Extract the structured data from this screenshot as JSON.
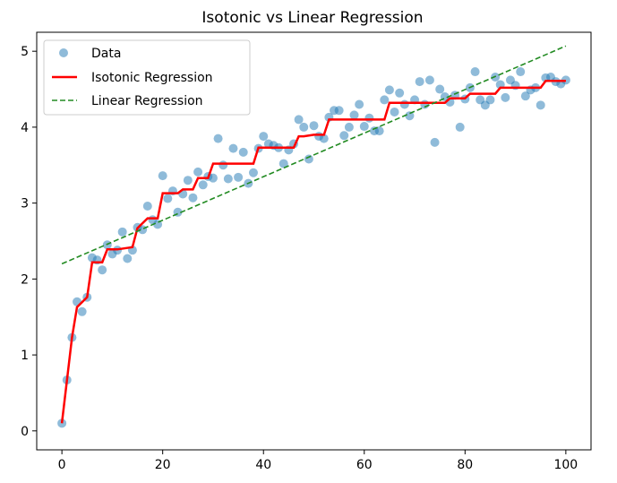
{
  "chart_data": {
    "type": "scatter",
    "title": "Isotonic vs Linear Regression",
    "xlabel": "",
    "ylabel": "",
    "xlim": [
      -5,
      105
    ],
    "ylim": [
      -0.25,
      5.25
    ],
    "x_ticks": [
      0,
      20,
      40,
      60,
      80,
      100
    ],
    "y_ticks": [
      0,
      1,
      2,
      3,
      4,
      5
    ],
    "grid": false,
    "legend": {
      "position": "top-left"
    },
    "series": [
      {
        "name": "Data",
        "kind": "scatter",
        "color": "#1f77b4",
        "x": [
          0,
          1,
          2,
          3,
          4,
          5,
          6,
          7,
          8,
          9,
          10,
          11,
          12,
          13,
          14,
          15,
          16,
          17,
          18,
          19,
          20,
          21,
          22,
          23,
          24,
          25,
          26,
          27,
          28,
          29,
          30,
          31,
          32,
          33,
          34,
          35,
          36,
          37,
          38,
          39,
          40,
          41,
          42,
          43,
          44,
          45,
          46,
          47,
          48,
          49,
          50,
          51,
          52,
          53,
          54,
          55,
          56,
          57,
          58,
          59,
          60,
          61,
          62,
          63,
          64,
          65,
          66,
          67,
          68,
          69,
          70,
          71,
          72,
          73,
          74,
          75,
          76,
          77,
          78,
          79,
          80,
          81,
          82,
          83,
          84,
          85,
          86,
          87,
          88,
          89,
          90,
          91,
          92,
          93,
          94,
          95,
          96,
          97,
          98,
          99,
          100
        ],
        "y": [
          0.1,
          0.67,
          1.23,
          1.7,
          1.57,
          1.76,
          2.28,
          2.25,
          2.12,
          2.45,
          2.33,
          2.38,
          2.62,
          2.27,
          2.38,
          2.68,
          2.65,
          2.96,
          2.78,
          2.72,
          3.36,
          3.06,
          3.16,
          2.88,
          3.12,
          3.3,
          3.07,
          3.41,
          3.24,
          3.35,
          3.33,
          3.85,
          3.5,
          3.32,
          3.72,
          3.34,
          3.67,
          3.26,
          3.4,
          3.72,
          3.88,
          3.78,
          3.76,
          3.73,
          3.52,
          3.7,
          3.78,
          4.1,
          4.0,
          3.58,
          4.02,
          3.88,
          3.85,
          4.13,
          4.22,
          4.22,
          3.89,
          4.0,
          4.16,
          4.3,
          4.01,
          4.12,
          3.95,
          3.95,
          4.36,
          4.49,
          4.2,
          4.45,
          4.3,
          4.15,
          4.36,
          4.6,
          4.3,
          4.62,
          3.8,
          4.5,
          4.4,
          4.33,
          4.42,
          4.0,
          4.37,
          4.52,
          4.73,
          4.36,
          4.29,
          4.36,
          4.66,
          4.56,
          4.39,
          4.62,
          4.55,
          4.73,
          4.41,
          4.49,
          4.52,
          4.29,
          4.65,
          4.66,
          4.6,
          4.57,
          4.62
        ]
      },
      {
        "name": "Isotonic Regression",
        "kind": "step-line",
        "color": "#ff0000",
        "x": [
          0,
          1,
          2,
          3,
          5,
          6,
          8,
          9,
          11,
          14,
          15,
          17,
          19,
          20,
          23,
          24,
          26,
          27,
          29,
          30,
          31,
          38,
          39,
          40,
          46,
          47,
          48,
          50,
          52,
          53,
          54,
          63,
          64,
          65,
          70,
          71,
          72,
          76,
          77,
          80,
          81,
          86,
          87,
          95,
          96,
          100
        ],
        "y": [
          0.1,
          0.67,
          1.23,
          1.63,
          1.76,
          2.22,
          2.22,
          2.39,
          2.39,
          2.42,
          2.67,
          2.8,
          2.8,
          3.13,
          3.13,
          3.18,
          3.18,
          3.33,
          3.33,
          3.52,
          3.52,
          3.52,
          3.73,
          3.73,
          3.73,
          3.88,
          3.88,
          3.9,
          3.9,
          4.1,
          4.1,
          4.1,
          4.1,
          4.32,
          4.32,
          4.32,
          4.32,
          4.32,
          4.38,
          4.38,
          4.44,
          4.44,
          4.52,
          4.52,
          4.61,
          4.61
        ]
      },
      {
        "name": "Linear Regression",
        "kind": "dashed-line",
        "color": "#228b22",
        "x": [
          0,
          100
        ],
        "y": [
          2.2,
          5.07
        ]
      }
    ]
  }
}
